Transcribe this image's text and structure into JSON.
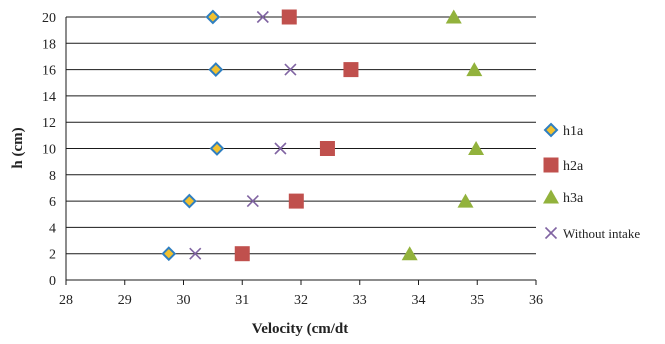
{
  "chart_data": {
    "type": "scatter",
    "title": "",
    "xlabel": "Velocity (cm/dt",
    "ylabel": "h (cm)",
    "xlim": [
      28,
      36
    ],
    "ylim": [
      0,
      20
    ],
    "x_ticks": [
      "28",
      "29",
      "30",
      "31",
      "32",
      "33",
      "34",
      "35",
      "36"
    ],
    "y_ticks": [
      "0",
      "2",
      "4",
      "6",
      "8",
      "10",
      "12",
      "14",
      "16",
      "18",
      "20"
    ],
    "grid": "horizontal",
    "legend_position": "right",
    "series": [
      {
        "name": "h1a",
        "marker": "diamond",
        "color": "#f2c12e",
        "stroke": "#2f7fc1",
        "points": [
          [
            30.5,
            20
          ],
          [
            30.55,
            16
          ],
          [
            30.57,
            10
          ],
          [
            30.1,
            6
          ],
          [
            29.75,
            2
          ]
        ]
      },
      {
        "name": "h2a",
        "marker": "square",
        "color": "#c0504d",
        "points": [
          [
            31.8,
            20
          ],
          [
            32.85,
            16
          ],
          [
            32.45,
            10
          ],
          [
            31.92,
            6
          ],
          [
            31.0,
            2
          ]
        ]
      },
      {
        "name": "h3a",
        "marker": "triangle",
        "color": "#92b23c",
        "points": [
          [
            34.6,
            20
          ],
          [
            34.95,
            16
          ],
          [
            34.98,
            10
          ],
          [
            34.8,
            6
          ],
          [
            33.85,
            2
          ]
        ]
      },
      {
        "name": "Without intake",
        "marker": "x",
        "color": "#8064a2",
        "points": [
          [
            31.35,
            20
          ],
          [
            31.82,
            16
          ],
          [
            31.65,
            10
          ],
          [
            31.18,
            6
          ],
          [
            30.2,
            2
          ]
        ]
      }
    ]
  }
}
